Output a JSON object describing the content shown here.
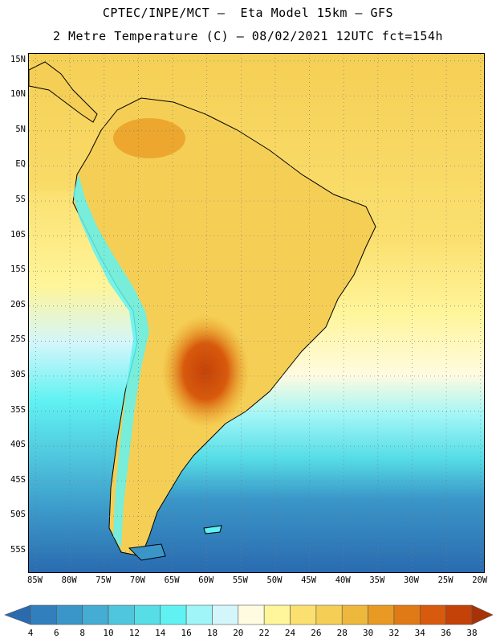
{
  "header": {
    "line1": "CPTEC/INPE/MCT –  Eta Model 15km – GFS",
    "line2": "2 Metre Temperature (C) – 08/02/2021 12UTC fct=154h"
  },
  "map": {
    "lat_labels": [
      "15N",
      "10N",
      "5N",
      "EQ",
      "5S",
      "10S",
      "15S",
      "20S",
      "25S",
      "30S",
      "35S",
      "40S",
      "45S",
      "50S",
      "55S"
    ],
    "lon_labels": [
      "85W",
      "80W",
      "75W",
      "70W",
      "65W",
      "60W",
      "55W",
      "50W",
      "45W",
      "40W",
      "35W",
      "30W",
      "25W",
      "20W"
    ],
    "extent": {
      "lon_min": -86,
      "lon_max": -19.5,
      "lat_min": -58,
      "lat_max": 16
    }
  },
  "legend": {
    "levels": [
      "4",
      "6",
      "8",
      "10",
      "12",
      "14",
      "16",
      "18",
      "20",
      "22",
      "24",
      "26",
      "28",
      "30",
      "32",
      "34",
      "36",
      "38"
    ],
    "colors": [
      "#2a6bb0",
      "#3180bd",
      "#3a96c8",
      "#45acd3",
      "#4fc6de",
      "#56dde6",
      "#60f2f2",
      "#9ff5f7",
      "#d3f6fb",
      "#fffbe0",
      "#fff59a",
      "#fbe070",
      "#f5cf55",
      "#eeb83d",
      "#e99a22",
      "#e07a15",
      "#d85a0d",
      "#c44208",
      "#a83206"
    ]
  }
}
